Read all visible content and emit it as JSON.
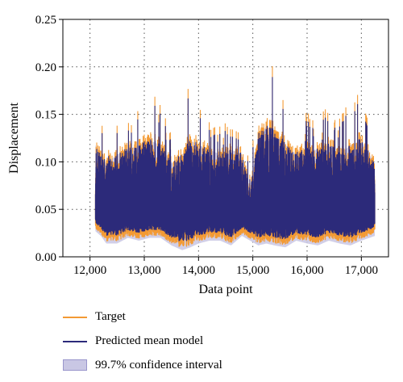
{
  "chart_data": {
    "type": "line",
    "title": "",
    "xlabel": "Data point",
    "ylabel": "Displacement",
    "xlim": [
      11500,
      17500
    ],
    "ylim": [
      0,
      0.25
    ],
    "xticks": [
      12000,
      13000,
      14000,
      15000,
      16000,
      17000
    ],
    "xtick_labels": [
      "12,000",
      "13,000",
      "14,000",
      "15,000",
      "16,000",
      "17,000"
    ],
    "yticks": [
      0,
      0.05,
      0.1,
      0.15,
      0.2,
      0.25
    ],
    "ytick_labels": [
      "0.00",
      "0.05",
      "0.10",
      "0.15",
      "0.20",
      "0.25"
    ],
    "grid": true,
    "legend_position": "below",
    "x_start": 12100,
    "x_end": 17250,
    "profile": [
      {
        "x": 12100,
        "low": 0.035,
        "high": 0.12,
        "peak": 0.175
      },
      {
        "x": 12200,
        "low": 0.03,
        "high": 0.11,
        "peak": 0.145
      },
      {
        "x": 12300,
        "low": 0.022,
        "high": 0.1,
        "peak": 0.12
      },
      {
        "x": 12500,
        "low": 0.022,
        "high": 0.11,
        "peak": 0.135
      },
      {
        "x": 12700,
        "low": 0.028,
        "high": 0.115,
        "peak": 0.14
      },
      {
        "x": 12900,
        "low": 0.025,
        "high": 0.12,
        "peak": 0.148
      },
      {
        "x": 13100,
        "low": 0.028,
        "high": 0.125,
        "peak": 0.165
      },
      {
        "x": 13300,
        "low": 0.028,
        "high": 0.12,
        "peak": 0.16
      },
      {
        "x": 13500,
        "low": 0.02,
        "high": 0.1,
        "peak": 0.12
      },
      {
        "x": 13700,
        "low": 0.015,
        "high": 0.11,
        "peak": 0.14
      },
      {
        "x": 13850,
        "low": 0.018,
        "high": 0.125,
        "peak": 0.178
      },
      {
        "x": 14000,
        "low": 0.022,
        "high": 0.12,
        "peak": 0.16
      },
      {
        "x": 14200,
        "low": 0.025,
        "high": 0.115,
        "peak": 0.145
      },
      {
        "x": 14400,
        "low": 0.025,
        "high": 0.11,
        "peak": 0.135
      },
      {
        "x": 14600,
        "low": 0.02,
        "high": 0.115,
        "peak": 0.14
      },
      {
        "x": 14800,
        "low": 0.03,
        "high": 0.11,
        "peak": 0.145
      },
      {
        "x": 14950,
        "low": 0.025,
        "high": 0.07,
        "peak": 0.09
      },
      {
        "x": 15100,
        "low": 0.02,
        "high": 0.13,
        "peak": 0.175
      },
      {
        "x": 15250,
        "low": 0.022,
        "high": 0.14,
        "peak": 0.2
      },
      {
        "x": 15400,
        "low": 0.02,
        "high": 0.135,
        "peak": 0.205
      },
      {
        "x": 15600,
        "low": 0.018,
        "high": 0.12,
        "peak": 0.155
      },
      {
        "x": 15800,
        "low": 0.025,
        "high": 0.11,
        "peak": 0.135
      },
      {
        "x": 16000,
        "low": 0.022,
        "high": 0.115,
        "peak": 0.145
      },
      {
        "x": 16200,
        "low": 0.02,
        "high": 0.115,
        "peak": 0.14
      },
      {
        "x": 16400,
        "low": 0.025,
        "high": 0.12,
        "peak": 0.15
      },
      {
        "x": 16600,
        "low": 0.022,
        "high": 0.11,
        "peak": 0.14
      },
      {
        "x": 16800,
        "low": 0.02,
        "high": 0.12,
        "peak": 0.17
      },
      {
        "x": 17000,
        "low": 0.025,
        "high": 0.125,
        "peak": 0.16
      },
      {
        "x": 17250,
        "low": 0.03,
        "high": 0.1,
        "peak": 0.12
      }
    ],
    "series": [
      {
        "name": "Target",
        "color": "#f39a34"
      },
      {
        "name": "Predicted mean model",
        "color": "#2c2a7a"
      },
      {
        "name": "99.7% confidence interval",
        "color": "#c9c7e4"
      }
    ]
  },
  "legend": {
    "items": [
      {
        "label": "Target"
      },
      {
        "label": "Predicted mean model"
      },
      {
        "label": "99.7% confidence interval"
      }
    ]
  }
}
